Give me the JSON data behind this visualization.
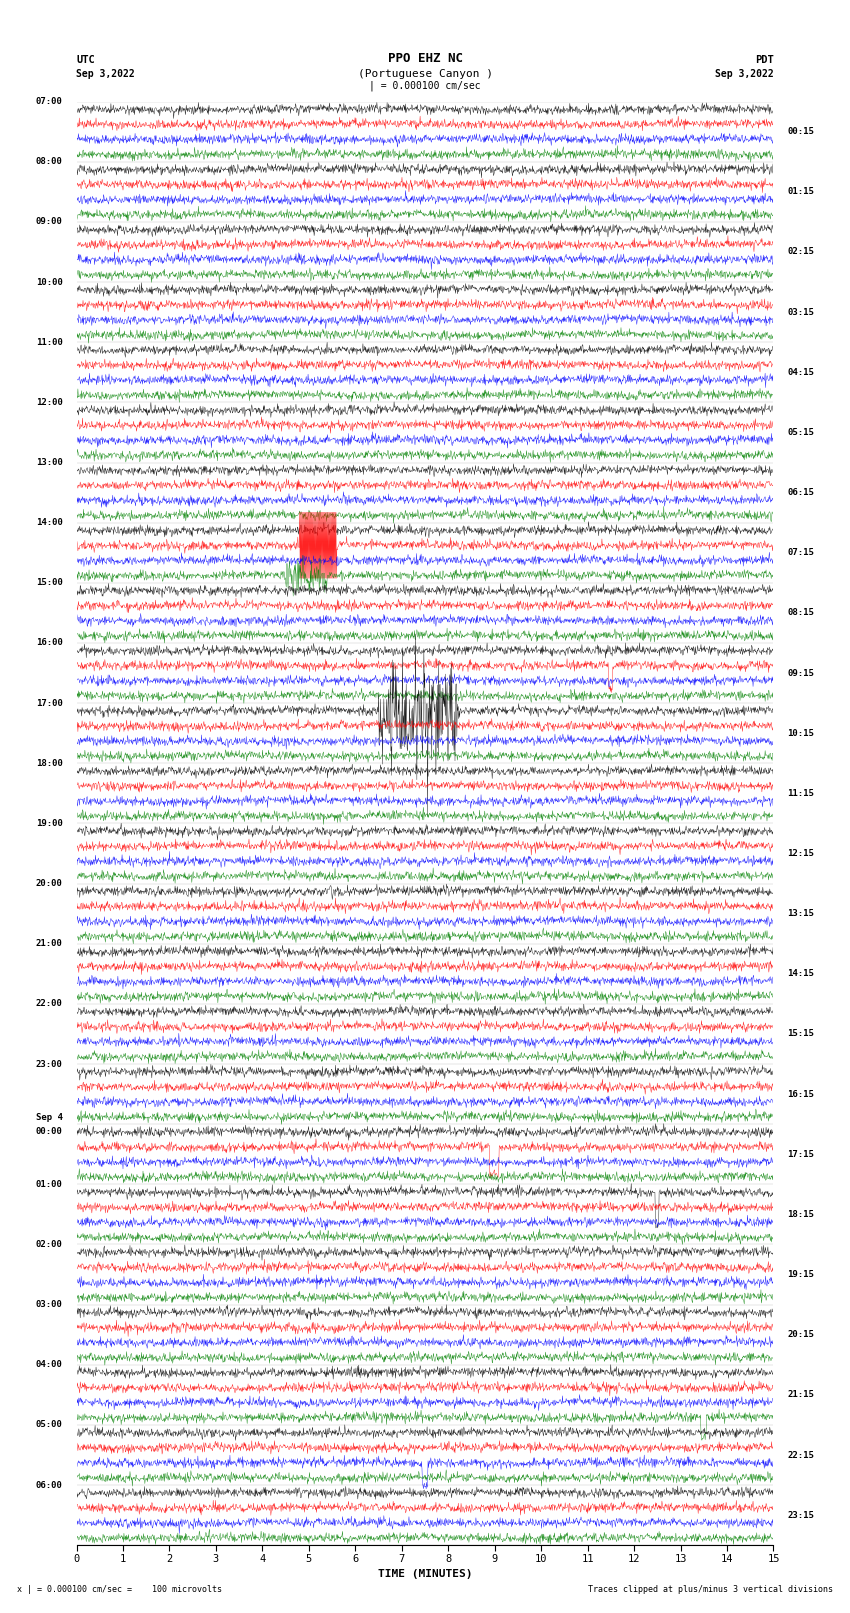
{
  "title_line1": "PPO EHZ NC",
  "title_line2": "(Portuguese Canyon )",
  "title_line3": "| = 0.000100 cm/sec",
  "utc_label": "UTC",
  "pdt_label": "PDT",
  "date_left": "Sep 3,2022",
  "date_right": "Sep 3,2022",
  "xlabel": "TIME (MINUTES)",
  "footer_left": "x | = 0.000100 cm/sec =    100 microvolts",
  "footer_right": "Traces clipped at plus/minus 3 vertical divisions",
  "bg_color": "white",
  "trace_colors_cycle": [
    "black",
    "red",
    "blue",
    "green"
  ],
  "xmin": 0,
  "xmax": 15,
  "xticks": [
    0,
    1,
    2,
    3,
    4,
    5,
    6,
    7,
    8,
    9,
    10,
    11,
    12,
    13,
    14,
    15
  ],
  "noise_amplitude": 0.15,
  "hour_labels_left": [
    "07:00",
    "08:00",
    "09:00",
    "10:00",
    "11:00",
    "12:00",
    "13:00",
    "14:00",
    "15:00",
    "16:00",
    "17:00",
    "18:00",
    "19:00",
    "20:00",
    "21:00",
    "22:00",
    "23:00",
    "Sep 4",
    "01:00",
    "02:00",
    "03:00",
    "04:00",
    "05:00",
    "06:00"
  ],
  "hour_labels_right": [
    "00:15",
    "01:15",
    "02:15",
    "03:15",
    "04:15",
    "05:15",
    "06:15",
    "07:15",
    "08:15",
    "09:15",
    "10:15",
    "11:15",
    "12:15",
    "13:15",
    "14:15",
    "15:15",
    "16:15",
    "17:15",
    "18:15",
    "19:15",
    "20:15",
    "21:15",
    "22:15",
    "23:15"
  ]
}
